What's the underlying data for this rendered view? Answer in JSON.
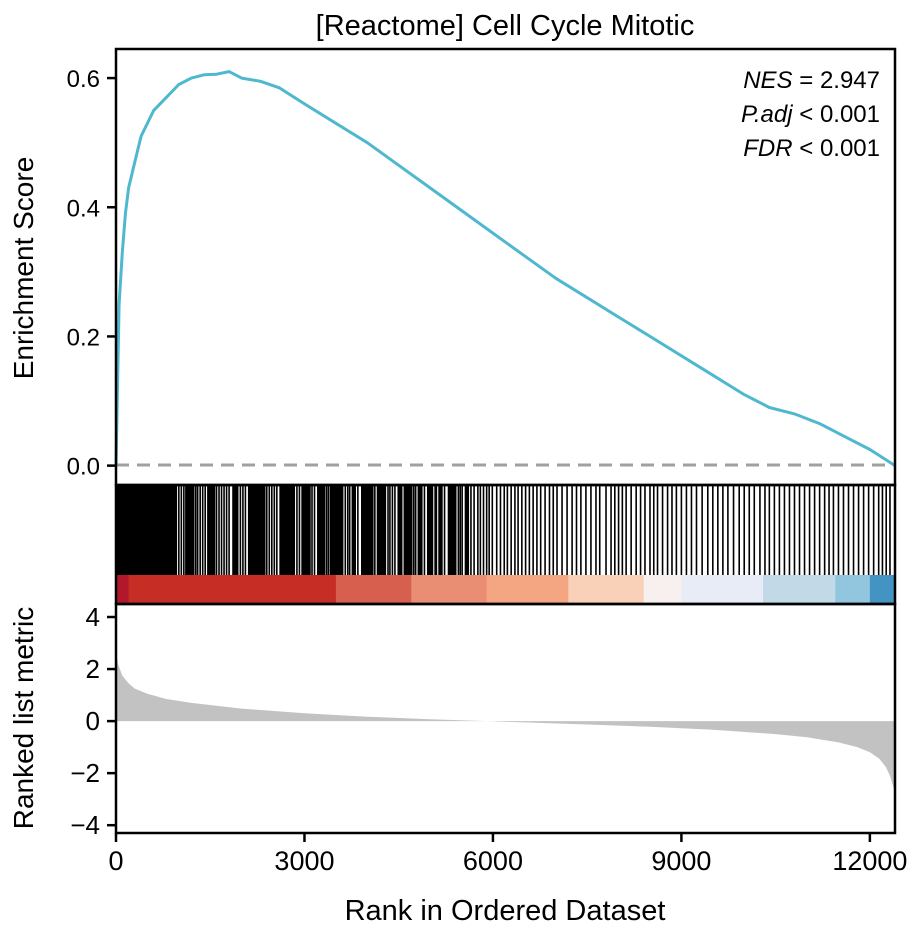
{
  "chart_data": {
    "type": "line",
    "title": "[Reactome] Cell Cycle Mitotic",
    "xlabel": "Rank in Ordered Dataset",
    "x_ticks": [
      0,
      3000,
      6000,
      9000,
      12000
    ],
    "x_tick_labels": [
      "0",
      "3000",
      "6000",
      "9000",
      "12000"
    ],
    "xlim": [
      0,
      12400
    ],
    "stats": {
      "nes": {
        "name": "NES",
        "op": "=",
        "value": "2.947"
      },
      "padj": {
        "name": "P.adj",
        "op": "<",
        "value": "0.001"
      },
      "fdr": {
        "name": "FDR",
        "op": "<",
        "value": "0.001"
      }
    },
    "enrichment": {
      "ylabel": "Enrichment Score",
      "ylim": [
        -0.03,
        0.645
      ],
      "y_ticks": [
        0.0,
        0.2,
        0.4,
        0.6
      ],
      "y_tick_labels": [
        "0.0",
        "0.2",
        "0.4",
        "0.6"
      ],
      "baseline": 0,
      "line_color": "#4fb8cf",
      "baseline_color": "#a0a0a0",
      "x": [
        0,
        50,
        100,
        150,
        200,
        300,
        400,
        500,
        600,
        700,
        800,
        1000,
        1200,
        1400,
        1600,
        1800,
        2000,
        2300,
        2600,
        3000,
        3500,
        4000,
        4500,
        5000,
        5500,
        6000,
        6500,
        7000,
        7500,
        8000,
        8500,
        9000,
        9500,
        10000,
        10400,
        10800,
        11200,
        11600,
        12000,
        12400
      ],
      "y": [
        0.0,
        0.25,
        0.33,
        0.39,
        0.43,
        0.47,
        0.51,
        0.53,
        0.55,
        0.56,
        0.57,
        0.59,
        0.6,
        0.605,
        0.606,
        0.61,
        0.6,
        0.595,
        0.585,
        0.56,
        0.53,
        0.5,
        0.465,
        0.43,
        0.395,
        0.36,
        0.325,
        0.29,
        0.26,
        0.23,
        0.2,
        0.17,
        0.14,
        0.11,
        0.09,
        0.08,
        0.065,
        0.045,
        0.025,
        0.0
      ]
    },
    "hits": {
      "dense_ranges": [
        [
          0,
          950
        ],
        [
          1100,
          1250
        ],
        [
          1450,
          1580
        ],
        [
          1850,
          1950
        ],
        [
          2100,
          2380
        ],
        [
          2600,
          2850
        ],
        [
          2950,
          3100
        ],
        [
          3200,
          3330
        ],
        [
          3400,
          3620
        ],
        [
          3750,
          3820
        ],
        [
          3900,
          4100
        ],
        [
          4150,
          4300
        ],
        [
          4480,
          4560
        ],
        [
          4600,
          4720
        ],
        [
          4800,
          4880
        ],
        [
          4950,
          5050
        ],
        [
          5130,
          5200
        ],
        [
          5280,
          5420
        ],
        [
          5550,
          5620
        ]
      ],
      "positions": [
        960,
        1000,
        1040,
        1080,
        1270,
        1300,
        1340,
        1380,
        1420,
        1600,
        1640,
        1680,
        1720,
        1760,
        1800,
        1980,
        2020,
        2060,
        2400,
        2440,
        2480,
        2520,
        2560,
        2880,
        2920,
        3120,
        3160,
        3350,
        3380,
        3650,
        3690,
        3720,
        3850,
        4120,
        4330,
        4360,
        4400,
        4440,
        4590,
        4740,
        4770,
        4910,
        5080,
        5100,
        5230,
        5450,
        5480,
        5510,
        5650,
        5700,
        5760,
        5800,
        5850,
        5900,
        5940,
        5990,
        6060,
        6120,
        6180,
        6230,
        6290,
        6350,
        6400,
        6460,
        6520,
        6580,
        6640,
        6700,
        6760,
        6830,
        6900,
        6960,
        7020,
        7100,
        7180,
        7260,
        7330,
        7400,
        7480,
        7560,
        7640,
        7700,
        7800,
        7880,
        7940,
        8000,
        8060,
        8120,
        8200,
        8280,
        8350,
        8420,
        8500,
        8560,
        8620,
        8700,
        8780,
        8850,
        8920,
        9000,
        9080,
        9160,
        9240,
        9330,
        9420,
        9500,
        9580,
        9660,
        9740,
        9830,
        9920,
        10000,
        10080,
        10160,
        10250,
        10330,
        10400,
        10480,
        10560,
        10640,
        10720,
        10800,
        10880,
        10960,
        11040,
        11120,
        11200,
        11280,
        11350,
        11420,
        11500,
        11580,
        11660,
        11740,
        11820,
        11900,
        11980,
        12060,
        12140,
        12200,
        12260,
        12320
      ]
    },
    "heat_band": {
      "colors": [
        "#b2182b",
        "#c52d25",
        "#d6604d",
        "#e98e73",
        "#f4a582",
        "#f9d0b8",
        "#f7f0ee",
        "#e8ecf6",
        "#c2d9e8",
        "#92c5de",
        "#4393c3"
      ],
      "breakpoints": [
        0,
        200,
        3500,
        4700,
        5900,
        7200,
        8400,
        9000,
        10300,
        11450,
        12000,
        12400
      ]
    },
    "ranked": {
      "ylabel": "Ranked list metric",
      "ylim": [
        -4.3,
        4.5
      ],
      "y_ticks": [
        -4,
        -2,
        0,
        2,
        4
      ],
      "y_tick_labels": [
        "−4",
        "−2",
        "0",
        "2",
        "4"
      ],
      "fill_color": "#c2c2c2",
      "x": [
        0,
        30,
        100,
        200,
        300,
        500,
        800,
        1200,
        2000,
        3000,
        4000,
        5000,
        5900,
        6500,
        7500,
        8500,
        9500,
        10500,
        11000,
        11500,
        11800,
        12000,
        12150,
        12250,
        12320,
        12400
      ],
      "y": [
        2.7,
        2.2,
        1.75,
        1.45,
        1.25,
        1.05,
        0.85,
        0.7,
        0.48,
        0.3,
        0.17,
        0.07,
        0.0,
        -0.05,
        -0.13,
        -0.22,
        -0.33,
        -0.5,
        -0.62,
        -0.82,
        -1.0,
        -1.2,
        -1.45,
        -1.75,
        -2.1,
        -2.75
      ]
    }
  }
}
